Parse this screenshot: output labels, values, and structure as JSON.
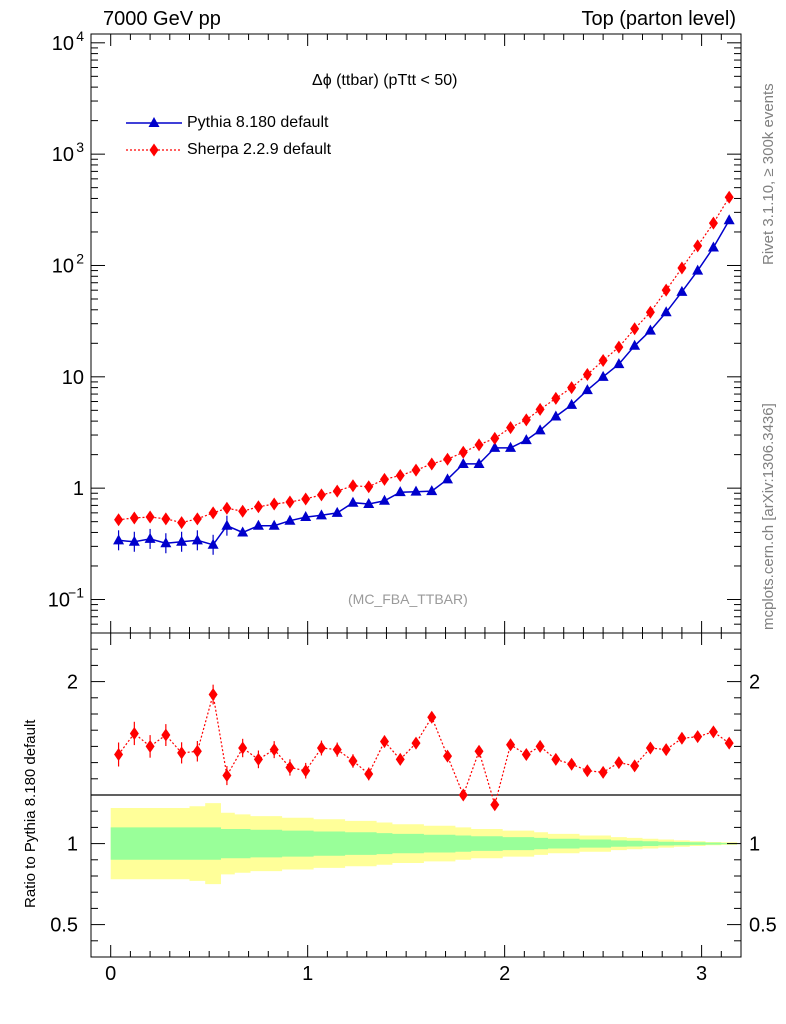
{
  "header": {
    "left": "7000 GeV pp",
    "right": "Top (parton level)"
  },
  "side_labels": {
    "top": "Rivet 3.1.10, ≥ 300k events",
    "bottom": "mcplots.cern.ch [arXiv:1306.3436]"
  },
  "plot_title": "Δϕ (ttbar) (pTtt < 50)",
  "watermark": "(MC_FBA_TTBAR)",
  "ratio_ylabel": "Ratio to Pythia 8.180 default",
  "colors": {
    "pythia": "#0000cc",
    "sherpa": "#ff0000",
    "band_inner": "#99ff99",
    "band_outer": "#ffff99"
  },
  "chart_data": [
    {
      "type": "line",
      "yscale": "log",
      "xlim": [
        -0.1,
        3.2
      ],
      "ylim": [
        0.05,
        12000
      ],
      "y_ticks": [
        {
          "value": 0.1,
          "base": "10",
          "exp": "−1"
        },
        {
          "value": 1,
          "label": "1"
        },
        {
          "value": 10,
          "label": "10"
        },
        {
          "value": 100,
          "base": "10",
          "exp": "2"
        },
        {
          "value": 1000,
          "base": "10",
          "exp": "3"
        },
        {
          "value": 10000,
          "base": "10",
          "exp": "4"
        }
      ],
      "x": [
        0.04,
        0.12,
        0.2,
        0.28,
        0.36,
        0.44,
        0.52,
        0.59,
        0.67,
        0.75,
        0.83,
        0.91,
        0.99,
        1.07,
        1.15,
        1.23,
        1.31,
        1.39,
        1.47,
        1.55,
        1.63,
        1.71,
        1.79,
        1.87,
        1.95,
        2.03,
        2.11,
        2.18,
        2.26,
        2.34,
        2.42,
        2.5,
        2.58,
        2.66,
        2.74,
        2.82,
        2.9,
        2.98,
        3.06,
        3.14
      ],
      "series": [
        {
          "name": "Pythia 8.180 default",
          "marker": "triangle",
          "values": [
            0.34,
            0.33,
            0.35,
            0.32,
            0.33,
            0.34,
            0.31,
            0.46,
            0.4,
            0.46,
            0.46,
            0.51,
            0.55,
            0.57,
            0.6,
            0.74,
            0.72,
            0.77,
            0.92,
            0.93,
            0.94,
            1.2,
            1.65,
            1.65,
            2.3,
            2.3,
            2.7,
            3.3,
            4.4,
            5.6,
            7.6,
            10.0,
            13.0,
            19.0,
            26.0,
            38.0,
            58.0,
            90.0,
            145.0,
            255.0
          ]
        },
        {
          "name": "Sherpa 2.2.9 default",
          "marker": "diamond",
          "values": [
            0.52,
            0.54,
            0.55,
            0.53,
            0.49,
            0.53,
            0.6,
            0.66,
            0.62,
            0.68,
            0.72,
            0.75,
            0.8,
            0.87,
            0.94,
            1.05,
            1.03,
            1.2,
            1.3,
            1.45,
            1.65,
            1.82,
            2.1,
            2.45,
            2.8,
            3.5,
            4.1,
            5.1,
            6.4,
            8.0,
            10.5,
            14.0,
            18.5,
            27.0,
            38.0,
            60.0,
            95.0,
            150.0,
            240.0,
            410.0
          ]
        }
      ]
    },
    {
      "type": "line",
      "xlim": [
        -0.1,
        3.2
      ],
      "ylim": [
        0.3,
        2.3
      ],
      "y_ticks": [
        0.5,
        1,
        2
      ],
      "x_ticks": [
        0,
        1,
        2,
        3
      ],
      "x_edges": [
        0.0,
        0.08,
        0.16,
        0.24,
        0.32,
        0.4,
        0.48,
        0.56,
        0.63,
        0.71,
        0.79,
        0.87,
        0.95,
        1.03,
        1.11,
        1.19,
        1.27,
        1.35,
        1.43,
        1.51,
        1.59,
        1.67,
        1.75,
        1.83,
        1.91,
        1.99,
        2.07,
        2.15,
        2.22,
        2.3,
        2.38,
        2.46,
        2.54,
        2.62,
        2.7,
        2.78,
        2.86,
        2.94,
        3.02,
        3.1,
        3.18
      ],
      "band_inner_halfwidth": [
        0.1,
        0.1,
        0.1,
        0.1,
        0.1,
        0.1,
        0.1,
        0.09,
        0.09,
        0.085,
        0.085,
        0.08,
        0.08,
        0.075,
        0.075,
        0.07,
        0.07,
        0.065,
        0.06,
        0.06,
        0.055,
        0.055,
        0.05,
        0.045,
        0.045,
        0.04,
        0.04,
        0.035,
        0.03,
        0.03,
        0.025,
        0.025,
        0.02,
        0.018,
        0.015,
        0.012,
        0.01,
        0.008,
        0.006,
        0.004
      ],
      "band_outer_halfwidth": [
        0.22,
        0.22,
        0.22,
        0.22,
        0.22,
        0.23,
        0.25,
        0.19,
        0.18,
        0.17,
        0.17,
        0.16,
        0.16,
        0.15,
        0.15,
        0.14,
        0.14,
        0.13,
        0.12,
        0.12,
        0.11,
        0.11,
        0.1,
        0.09,
        0.09,
        0.08,
        0.08,
        0.07,
        0.06,
        0.06,
        0.05,
        0.05,
        0.04,
        0.035,
        0.03,
        0.025,
        0.02,
        0.015,
        0.01,
        0.008
      ],
      "series": [
        {
          "name": "Sherpa 2.2.9 default",
          "values": [
            1.55,
            1.68,
            1.6,
            1.67,
            1.56,
            1.57,
            1.92,
            1.42,
            1.59,
            1.52,
            1.58,
            1.47,
            1.45,
            1.59,
            1.58,
            1.51,
            1.43,
            1.63,
            1.52,
            1.62,
            1.78,
            1.54,
            1.3,
            1.57,
            1.24,
            1.61,
            1.55,
            1.6,
            1.52,
            1.49,
            1.45,
            1.44,
            1.5,
            1.48,
            1.59,
            1.58,
            1.65,
            1.66,
            1.69,
            1.62
          ]
        }
      ]
    }
  ]
}
